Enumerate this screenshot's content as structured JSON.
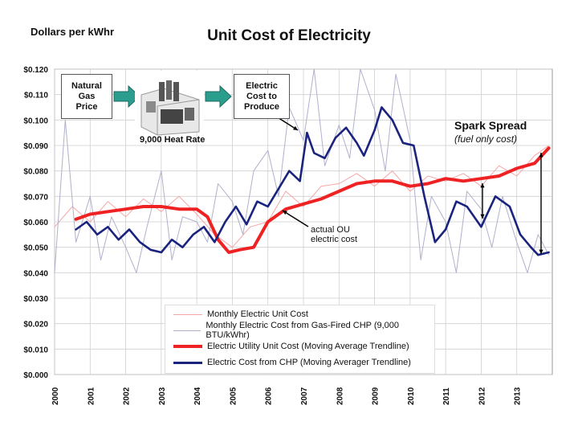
{
  "chart_data": {
    "type": "line",
    "title": "Unit Cost of Electricity",
    "ylabel": "Dollars per kWhr",
    "xlabel": "",
    "ylim": [
      0.0,
      0.12
    ],
    "xlim": [
      2000,
      2014
    ],
    "yticks": [
      "$0.000",
      "$0.010",
      "$0.020",
      "$0.030",
      "$0.040",
      "$0.050",
      "$0.060",
      "$0.070",
      "$0.080",
      "$0.090",
      "$0.100",
      "$0.110",
      "$0.120"
    ],
    "xticks": [
      "2000",
      "2001",
      "2002",
      "2003",
      "2004",
      "2005",
      "2006",
      "2007",
      "2008",
      "2009",
      "2010",
      "2011",
      "2012",
      "2013"
    ],
    "series": [
      {
        "name": "Monthly Electric Unit Cost",
        "color": "#f4a6a6",
        "x": [
          2000.0,
          2000.5,
          2001.0,
          2001.5,
          2002.0,
          2002.5,
          2003.0,
          2003.5,
          2004.0,
          2004.5,
          2005.0,
          2005.5,
          2006.0,
          2006.5,
          2007.0,
          2007.5,
          2008.0,
          2008.5,
          2009.0,
          2009.5,
          2010.0,
          2010.5,
          2011.0,
          2011.5,
          2012.0,
          2012.5,
          2013.0,
          2013.5,
          2013.9
        ],
        "y": [
          0.058,
          0.066,
          0.06,
          0.068,
          0.062,
          0.069,
          0.064,
          0.07,
          0.063,
          0.055,
          0.05,
          0.058,
          0.06,
          0.072,
          0.066,
          0.074,
          0.075,
          0.079,
          0.074,
          0.08,
          0.072,
          0.078,
          0.076,
          0.079,
          0.074,
          0.082,
          0.078,
          0.086,
          0.09
        ]
      },
      {
        "name": "Monthly Electric Cost from Gas-Fired CHP (9,000 BTU/kWhr)",
        "color": "#b0b0cc",
        "x": [
          2000.0,
          2000.3,
          2000.6,
          2001.0,
          2001.3,
          2001.6,
          2002.0,
          2002.3,
          2002.6,
          2003.0,
          2003.3,
          2003.6,
          2004.0,
          2004.3,
          2004.6,
          2005.0,
          2005.3,
          2005.6,
          2006.0,
          2006.3,
          2006.6,
          2007.0,
          2007.3,
          2007.6,
          2008.0,
          2008.3,
          2008.6,
          2009.0,
          2009.3,
          2009.6,
          2010.0,
          2010.3,
          2010.6,
          2011.0,
          2011.3,
          2011.6,
          2012.0,
          2012.3,
          2012.6,
          2013.0,
          2013.3,
          2013.6,
          2013.9
        ],
        "y": [
          0.04,
          0.1,
          0.052,
          0.07,
          0.045,
          0.062,
          0.05,
          0.04,
          0.058,
          0.08,
          0.045,
          0.062,
          0.06,
          0.052,
          0.075,
          0.068,
          0.055,
          0.08,
          0.088,
          0.07,
          0.105,
          0.092,
          0.12,
          0.082,
          0.098,
          0.085,
          0.12,
          0.104,
          0.08,
          0.118,
          0.092,
          0.045,
          0.07,
          0.06,
          0.04,
          0.072,
          0.065,
          0.05,
          0.07,
          0.052,
          0.04,
          0.055,
          0.047
        ]
      },
      {
        "name": "Electric Utility Unit Cost (Moving Average Trendline)",
        "color": "#ee2222",
        "x": [
          2000.6,
          2001.0,
          2001.5,
          2002.0,
          2002.5,
          2003.0,
          2003.5,
          2004.0,
          2004.3,
          2004.6,
          2004.9,
          2005.2,
          2005.6,
          2006.0,
          2006.5,
          2007.0,
          2007.5,
          2008.0,
          2008.5,
          2009.0,
          2009.5,
          2010.0,
          2010.5,
          2011.0,
          2011.5,
          2012.0,
          2012.5,
          2013.0,
          2013.5,
          2013.9
        ],
        "y": [
          0.061,
          0.063,
          0.064,
          0.065,
          0.066,
          0.066,
          0.065,
          0.065,
          0.062,
          0.053,
          0.048,
          0.049,
          0.05,
          0.06,
          0.065,
          0.067,
          0.069,
          0.072,
          0.075,
          0.076,
          0.076,
          0.074,
          0.075,
          0.077,
          0.076,
          0.077,
          0.078,
          0.081,
          0.083,
          0.089
        ]
      },
      {
        "name": "Electric Cost from CHP (Moving Averager Trendline)",
        "color": "#1a237e",
        "x": [
          2000.6,
          2000.9,
          2001.2,
          2001.5,
          2001.8,
          2002.1,
          2002.4,
          2002.7,
          2003.0,
          2003.3,
          2003.6,
          2003.9,
          2004.2,
          2004.5,
          2004.8,
          2005.1,
          2005.4,
          2005.7,
          2006.0,
          2006.3,
          2006.6,
          2006.9,
          2007.1,
          2007.3,
          2007.6,
          2007.9,
          2008.2,
          2008.5,
          2008.7,
          2009.0,
          2009.2,
          2009.5,
          2009.8,
          2010.1,
          2010.4,
          2010.7,
          2011.0,
          2011.3,
          2011.6,
          2012.0,
          2012.4,
          2012.8,
          2013.1,
          2013.4,
          2013.6,
          2013.9
        ],
        "y": [
          0.057,
          0.06,
          0.055,
          0.058,
          0.053,
          0.057,
          0.052,
          0.049,
          0.048,
          0.053,
          0.05,
          0.055,
          0.058,
          0.052,
          0.06,
          0.066,
          0.059,
          0.068,
          0.066,
          0.073,
          0.08,
          0.076,
          0.095,
          0.087,
          0.085,
          0.093,
          0.097,
          0.091,
          0.086,
          0.096,
          0.105,
          0.1,
          0.091,
          0.09,
          0.07,
          0.052,
          0.057,
          0.068,
          0.066,
          0.058,
          0.07,
          0.066,
          0.055,
          0.05,
          0.047,
          0.048
        ]
      }
    ]
  },
  "diagram": {
    "box_gas": [
      "Natural",
      "Gas",
      "Price"
    ],
    "box_electric": [
      "Electric",
      "Cost to",
      "Produce"
    ],
    "heat_rate": "9,000 Heat Rate"
  },
  "annotations": {
    "spark_spread": "Spark Spread",
    "spark_spread_sub": "(fuel only cost)",
    "actual_ou": [
      "actual OU",
      "electric cost"
    ]
  },
  "legend": [
    {
      "label": "Monthly Electric Unit Cost",
      "color": "#f4a6a6",
      "bold": false
    },
    {
      "label": "Monthly Electric Cost from Gas-Fired CHP (9,000 BTU/kWhr)",
      "color": "#b0b0cc",
      "bold": false
    },
    {
      "label": "Electric Utility Unit Cost (Moving Average Trendline)",
      "color": "#ee2222",
      "bold": true
    },
    {
      "label": "Electric Cost from CHP (Moving Averager Trendline)",
      "color": "#1a237e",
      "bold": true
    }
  ],
  "colors": {
    "arrow": "#2a9d8f"
  }
}
